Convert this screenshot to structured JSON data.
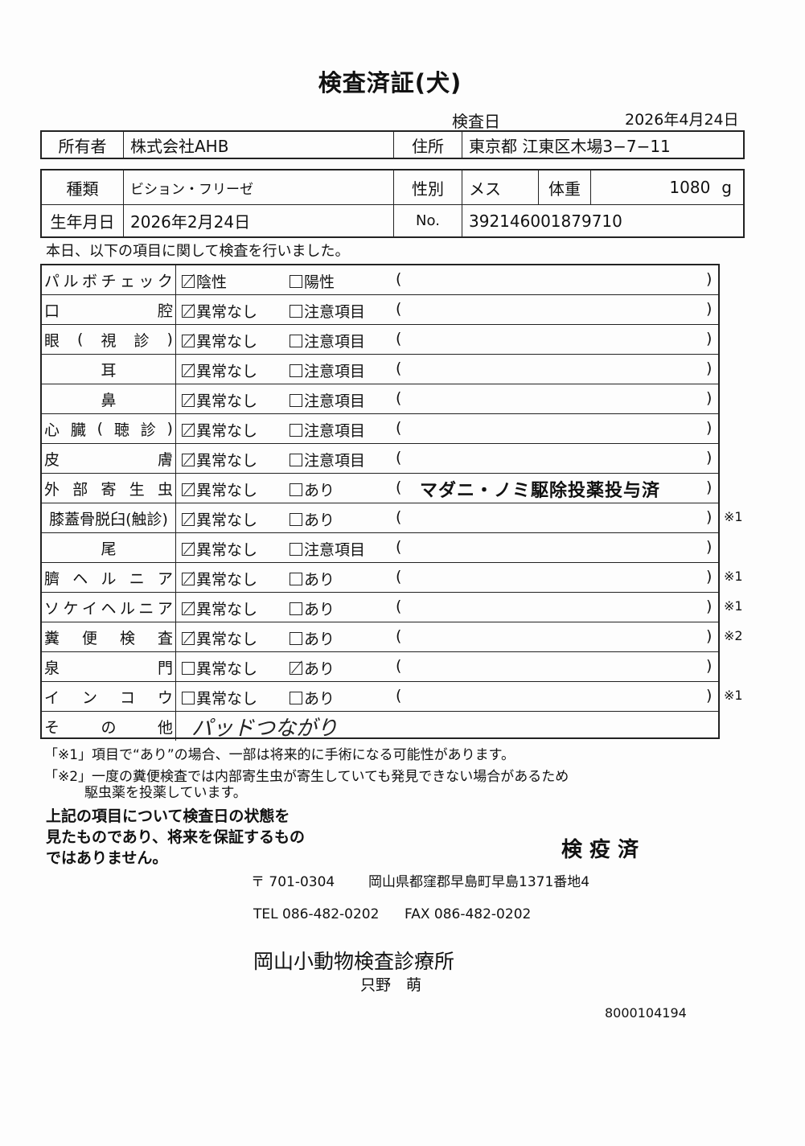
{
  "title": "検査済証(犬)",
  "exam_date_label": "検査日",
  "exam_date": "2026年4月24日",
  "owner": {
    "label": "所有者",
    "value": "株式会社AHB",
    "address_label": "住所",
    "address": "東京都 江東区木場3−7−11"
  },
  "animal": {
    "breed_label": "種類",
    "breed": "ビション・フリーゼ",
    "sex_label": "性別",
    "sex": "メス",
    "weight_label": "体重",
    "weight": "1080",
    "weight_unit": "g",
    "dob_label": "生年月日",
    "dob": "2026年2月24日",
    "no_label": "No.",
    "no": "392146001879710"
  },
  "intro": "本日、以下の項目に関して検査を行いました。",
  "rows": [
    {
      "label": [
        "パ",
        "ル",
        "ボ",
        "チ",
        "ェ",
        "ッ",
        "ク"
      ],
      "opt1": "陰性",
      "opt2": "陽性",
      "checked": 1,
      "comment": "",
      "note": ""
    },
    {
      "label": [
        "口",
        "腔"
      ],
      "opt1": "異常なし",
      "opt2": "注意項目",
      "checked": 1,
      "comment": "",
      "note": ""
    },
    {
      "label": [
        "眼",
        "(",
        "視",
        "診",
        ")"
      ],
      "opt1": "異常なし",
      "opt2": "注意項目",
      "checked": 1,
      "comment": "",
      "note": ""
    },
    {
      "label": [
        "耳"
      ],
      "opt1": "異常なし",
      "opt2": "注意項目",
      "checked": 1,
      "comment": "",
      "note": ""
    },
    {
      "label": [
        "鼻"
      ],
      "opt1": "異常なし",
      "opt2": "注意項目",
      "checked": 1,
      "comment": "",
      "note": ""
    },
    {
      "label": [
        "心",
        "臓",
        "(",
        "聴",
        "診",
        ")"
      ],
      "opt1": "異常なし",
      "opt2": "注意項目",
      "checked": 1,
      "comment": "",
      "note": ""
    },
    {
      "label": [
        "皮",
        "膚"
      ],
      "opt1": "異常なし",
      "opt2": "注意項目",
      "checked": 1,
      "comment": "",
      "note": ""
    },
    {
      "label": [
        "外",
        "部",
        "寄",
        "生",
        "虫"
      ],
      "opt1": "異常なし",
      "opt2": "あり",
      "checked": 1,
      "comment": "マダニ・ノミ駆除投薬投与済",
      "note": ""
    },
    {
      "label": [
        "膝蓋骨脱臼(触診)"
      ],
      "opt1": "異常なし",
      "opt2": "あり",
      "checked": 1,
      "comment": "",
      "note": "※1"
    },
    {
      "label": [
        "尾"
      ],
      "opt1": "異常なし",
      "opt2": "注意項目",
      "checked": 1,
      "comment": "",
      "note": ""
    },
    {
      "label": [
        "臍",
        "ヘ",
        "ル",
        "ニ",
        "ア"
      ],
      "opt1": "異常なし",
      "opt2": "あり",
      "checked": 1,
      "comment": "",
      "note": "※1"
    },
    {
      "label": [
        "ソ",
        "ケ",
        "イ",
        "ヘ",
        "ル",
        "ニ",
        "ア"
      ],
      "opt1": "異常なし",
      "opt2": "あり",
      "checked": 1,
      "comment": "",
      "note": "※1"
    },
    {
      "label": [
        "糞",
        "便",
        "検",
        "査"
      ],
      "opt1": "異常なし",
      "opt2": "あり",
      "checked": 1,
      "comment": "",
      "note": "※2"
    },
    {
      "label": [
        "泉",
        "門"
      ],
      "opt1": "異常なし",
      "opt2": "あり",
      "checked": 2,
      "comment": "",
      "note": ""
    },
    {
      "label": [
        "イ",
        "ン",
        "コ",
        "ウ"
      ],
      "opt1": "異常なし",
      "opt2": "あり",
      "checked": 0,
      "comment": "",
      "note": "※1"
    }
  ],
  "other": {
    "label": [
      "そ",
      "の",
      "他"
    ],
    "handwritten": "パッドつながり"
  },
  "notes": {
    "n1": "「※1」項目で“あり”の場合、一部は将来的に手術になる可能性があります。",
    "n2a": "「※2」一度の糞便検査では内部寄生虫が寄生していても発見できない場合があるため",
    "n2b": "駆虫薬を投薬しています。"
  },
  "disclaimer": [
    "上記の項目について検査日の状態を",
    "見たものであり、将来を保証するもの",
    "ではありません。"
  ],
  "stamp": "検 疫 済",
  "clinic": {
    "postal": "〒 701-0304",
    "address": "岡山県都窪郡早島町早島1371番地4",
    "tel": "TEL 086-482-0202",
    "fax": "FAX 086-482-0202",
    "name": "岡山小動物検査診療所",
    "person": "只野　萌",
    "code": "8000104194"
  }
}
